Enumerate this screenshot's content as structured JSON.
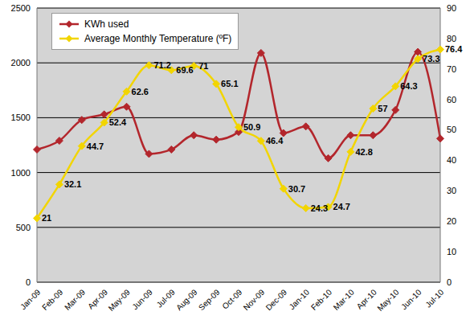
{
  "chart_data": {
    "type": "line",
    "categories": [
      "Jan-09",
      "Feb-09",
      "Mar-09",
      "Apr-09",
      "May-09",
      "Jun-09",
      "Jul-09",
      "Aug-09",
      "Sep-09",
      "Oct-09",
      "Nov-09",
      "Dec-09",
      "Jan-10",
      "Feb-10",
      "Mar-10",
      "Apr-10",
      "May-10",
      "Jun-10",
      "Jul-10"
    ],
    "series": [
      {
        "name": "KWh used",
        "color": "#b3262c",
        "marker": "diamond",
        "values": [
          1210,
          1290,
          1480,
          1530,
          1600,
          1170,
          1210,
          1340,
          1300,
          1370,
          2090,
          1360,
          1420,
          1130,
          1340,
          1340,
          1570,
          2100,
          1310
        ]
      },
      {
        "name": "Average Monthly Temperature (ºF)",
        "color": "#f2d500",
        "marker": "diamond",
        "axis": "y2",
        "data_labels": true,
        "values": [
          21,
          32.1,
          44.7,
          52.4,
          62.6,
          71.2,
          69.6,
          71,
          65.1,
          50.9,
          46.4,
          30.7,
          24.3,
          24.7,
          42.8,
          57,
          64.3,
          73.3,
          76.4
        ]
      }
    ],
    "ylim": [
      0,
      2500
    ],
    "yticks": [
      0,
      500,
      1000,
      1500,
      2000,
      2500
    ],
    "y2lim": [
      0,
      90
    ],
    "y2ticks": [
      0,
      10,
      20,
      30,
      40,
      50,
      60,
      70,
      80,
      90
    ],
    "grid": true,
    "legend": "top-left"
  }
}
